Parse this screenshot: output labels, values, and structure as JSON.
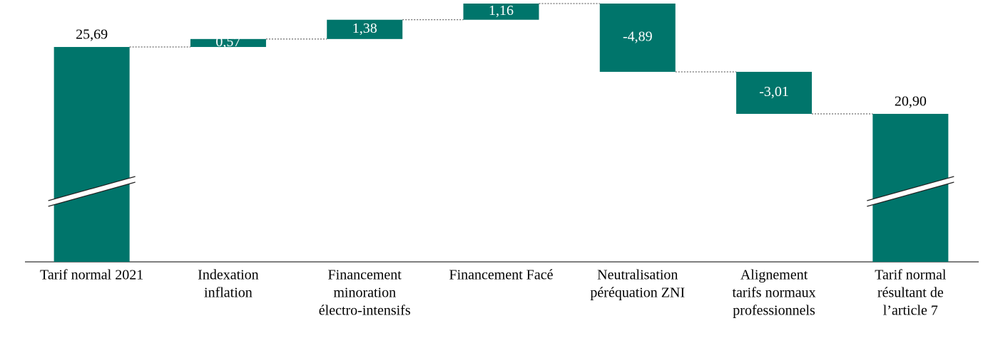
{
  "chart_data": {
    "type": "waterfall",
    "categories": [
      [
        "Tarif normal 2021"
      ],
      [
        "Indexation",
        "inflation"
      ],
      [
        "Financement",
        "minoration",
        "électro-intensifs"
      ],
      [
        "Financement Facé"
      ],
      [
        "Neutralisation",
        "péréquation ZNI"
      ],
      [
        "Alignement",
        "tarifs normaux",
        "professionnels"
      ],
      [
        "Tarif normal",
        "résultant de",
        "l’article 7"
      ]
    ],
    "values": [
      25.69,
      0.57,
      1.38,
      1.16,
      -4.89,
      -3.01,
      20.9
    ],
    "value_labels": [
      "25,69",
      "0,57",
      "1,38",
      "1,16",
      "-4,89",
      "-3,01",
      "20,90"
    ],
    "color": "#00756b"
  }
}
